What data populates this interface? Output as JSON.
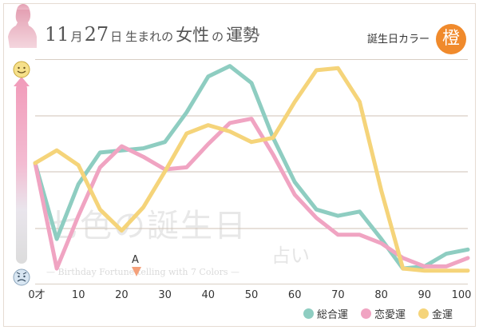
{
  "header": {
    "month_num": "11",
    "month_unit": "月",
    "day_num": "27",
    "day_unit": "日",
    "title_mid": "生まれの",
    "title_woman": "女性",
    "title_of": "の",
    "title_end": "運勢",
    "birth_color_label": "誕生日カラー",
    "birth_color_char": "橙",
    "birth_color_hex": "#f08a2c"
  },
  "watermark": {
    "main": "七色の誕生日",
    "sub": "— Birthday Fortune-telling with 7 Colors —",
    "small": "占い"
  },
  "marker": {
    "label": "A",
    "age": 24
  },
  "chart_data": {
    "type": "line",
    "title": "11月27日生まれの女性の運勢",
    "xlabel": "",
    "ylabel": "",
    "x": [
      0,
      5,
      10,
      15,
      20,
      25,
      30,
      35,
      40,
      45,
      50,
      55,
      60,
      65,
      70,
      75,
      80,
      85,
      90,
      95,
      100
    ],
    "x_ticks": [
      "0才",
      "10",
      "20",
      "30",
      "40",
      "50",
      "60",
      "70",
      "80",
      "90",
      "100"
    ],
    "x_tick_values": [
      0,
      10,
      20,
      30,
      40,
      50,
      60,
      70,
      80,
      90,
      100
    ],
    "xlim": [
      0,
      100
    ],
    "ylim": [
      0,
      100
    ],
    "grid": true,
    "series": [
      {
        "name": "総合運",
        "color": "#8ecdc1",
        "values": [
          53,
          17,
          43,
          58,
          59,
          60,
          63,
          77,
          94,
          99,
          91,
          65,
          44,
          31,
          28,
          30,
          17,
          3,
          4,
          10,
          12
        ]
      },
      {
        "name": "恋愛運",
        "color": "#f0a4c2",
        "values": [
          53,
          3,
          28,
          51,
          61,
          56,
          50,
          51,
          62,
          72,
          74,
          57,
          38,
          27,
          19,
          19,
          15,
          8,
          4,
          4,
          8
        ]
      },
      {
        "name": "金運",
        "color": "#f5d47a",
        "values": [
          53,
          59,
          52,
          31,
          21,
          32,
          49,
          67,
          71,
          68,
          63,
          65,
          82,
          97,
          98,
          82,
          40,
          3,
          2,
          2,
          2
        ]
      }
    ]
  }
}
